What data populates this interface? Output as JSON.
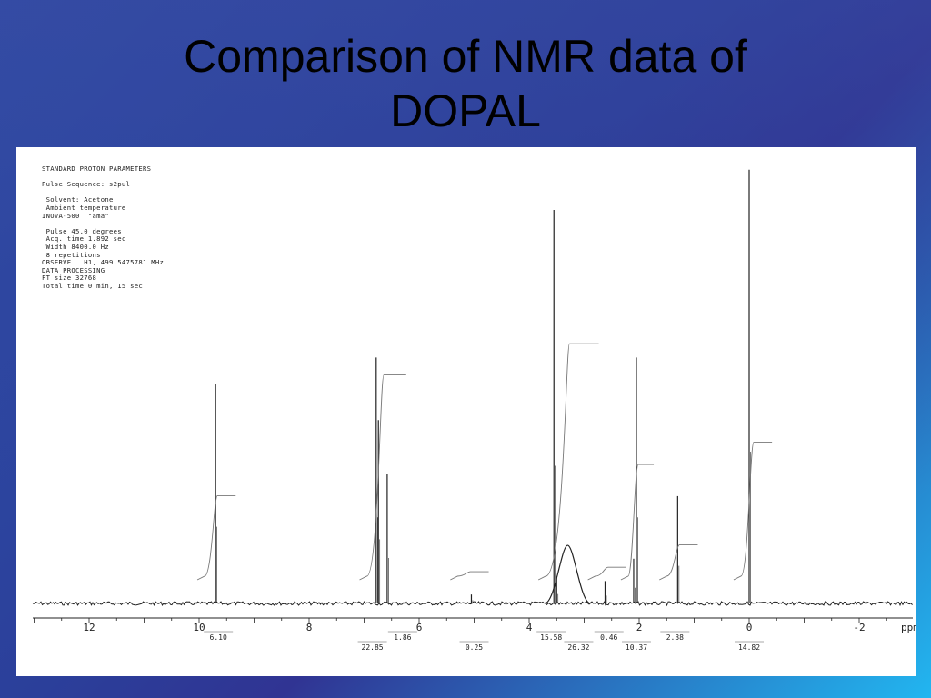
{
  "slide": {
    "title_line1": "Comparison of NMR data of",
    "title_line2": "DOPAL"
  },
  "params_text": [
    "STANDARD PROTON PARAMETERS",
    "",
    "Pulse Sequence: s2pul",
    "",
    " Solvent: Acetone",
    " Ambient temperature",
    "INOVA-500  \"ama\"",
    "",
    " Pulse 45.0 degrees",
    " Acq. time 1.892 sec",
    " Width 8400.0 Hz",
    " 8 repetitions",
    "OBSERVE   H1, 499.5475781 MHz",
    "DATA PROCESSING",
    "FT size 32768",
    "Total time 0 min, 15 sec"
  ],
  "chart_data": {
    "type": "line",
    "xlabel": "ppm",
    "xlim": [
      13,
      -3
    ],
    "x_reversed": true,
    "ticks": [
      12,
      10,
      8,
      6,
      4,
      2,
      0,
      -2
    ],
    "tick_labels": [
      "12",
      "10",
      "8",
      "6",
      "4",
      "2",
      "0",
      "-2"
    ],
    "unit_label": "ppm",
    "peaks": [
      {
        "ppm": 9.7,
        "height": 0.49
      },
      {
        "ppm": 6.78,
        "height": 0.55
      },
      {
        "ppm": 6.74,
        "height": 0.41
      },
      {
        "ppm": 6.58,
        "height": 0.29
      },
      {
        "ppm": 5.05,
        "height": 0.02
      },
      {
        "ppm": 3.55,
        "height": 0.88
      },
      {
        "ppm": 3.5,
        "height": 0.06
      },
      {
        "ppm": 3.3,
        "height": 0.13,
        "broad": true
      },
      {
        "ppm": 2.05,
        "height": 0.55
      },
      {
        "ppm": 2.1,
        "height": 0.1
      },
      {
        "ppm": 2.62,
        "height": 0.05
      },
      {
        "ppm": 1.3,
        "height": 0.24
      },
      {
        "ppm": 0.0,
        "height": 0.97
      }
    ],
    "integrals": [
      {
        "from": 9.9,
        "to": 9.5,
        "rise": 0.18
      },
      {
        "from": 6.95,
        "to": 6.4,
        "rise": 0.45
      },
      {
        "from": 5.3,
        "to": 4.9,
        "rise": 0.01
      },
      {
        "from": 3.7,
        "to": 2.9,
        "rise": 0.52
      },
      {
        "from": 2.8,
        "to": 2.4,
        "rise": 0.02
      },
      {
        "from": 2.2,
        "to": 1.9,
        "rise": 0.25
      },
      {
        "from": 1.5,
        "to": 1.1,
        "rise": 0.07
      },
      {
        "from": 0.15,
        "to": -0.25,
        "rise": 0.3
      }
    ],
    "integral_labels": [
      {
        "ppm": 9.65,
        "row": 0,
        "text": "6.10"
      },
      {
        "ppm": 6.85,
        "row": 1,
        "text": "22.85"
      },
      {
        "ppm": 6.3,
        "row": 0,
        "text": "1.86"
      },
      {
        "ppm": 5.0,
        "row": 1,
        "text": "0.25"
      },
      {
        "ppm": 3.6,
        "row": 0,
        "text": "15.58"
      },
      {
        "ppm": 3.1,
        "row": 1,
        "text": "26.32"
      },
      {
        "ppm": 2.55,
        "row": 0,
        "text": "0.46"
      },
      {
        "ppm": 2.05,
        "row": 1,
        "text": "10.37"
      },
      {
        "ppm": 1.35,
        "row": 0,
        "text": "2.38"
      },
      {
        "ppm": 0.0,
        "row": 1,
        "text": "14.82"
      }
    ],
    "colors": {
      "spectrum": "#222222",
      "integral": "#777777",
      "axis": "#222222",
      "label_lines": "#555555"
    }
  }
}
